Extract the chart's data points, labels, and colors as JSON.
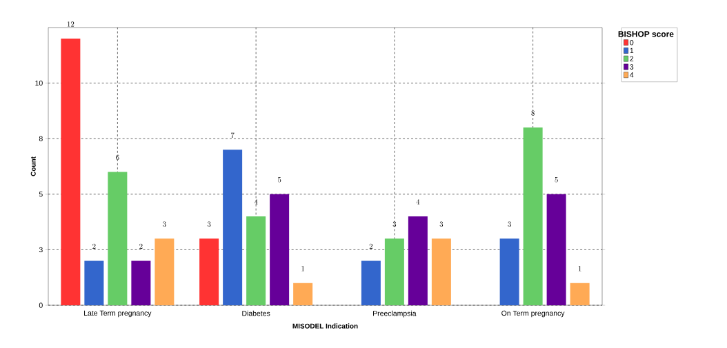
{
  "chart_data": {
    "type": "bar",
    "xlabel": "MISODEL Indication",
    "ylabel": "Count",
    "legend_title": "BISHOP score",
    "categories": [
      "Late Term pregnancy",
      "Diabetes",
      "Preeclampsia",
      "On Term pregnancy"
    ],
    "series": [
      {
        "name": "0",
        "color": "#ff3333",
        "values": [
          12,
          3,
          null,
          null
        ]
      },
      {
        "name": "1",
        "color": "#3366cc",
        "values": [
          2,
          7,
          2,
          3
        ]
      },
      {
        "name": "2",
        "color": "#66cc66",
        "values": [
          6,
          4,
          3,
          8
        ]
      },
      {
        "name": "3",
        "color": "#660099",
        "values": [
          2,
          5,
          4,
          5
        ]
      },
      {
        "name": "4",
        "color": "#ffaa55",
        "values": [
          3,
          1,
          3,
          1
        ]
      }
    ],
    "ylim": [
      0,
      12.5
    ],
    "yticks": [
      0,
      {
        "value": 2.5,
        "label": "3"
      },
      5,
      {
        "value": 7.5,
        "label": "8"
      },
      10
    ],
    "grid": true,
    "legend": "top right",
    "data_labels": true
  }
}
